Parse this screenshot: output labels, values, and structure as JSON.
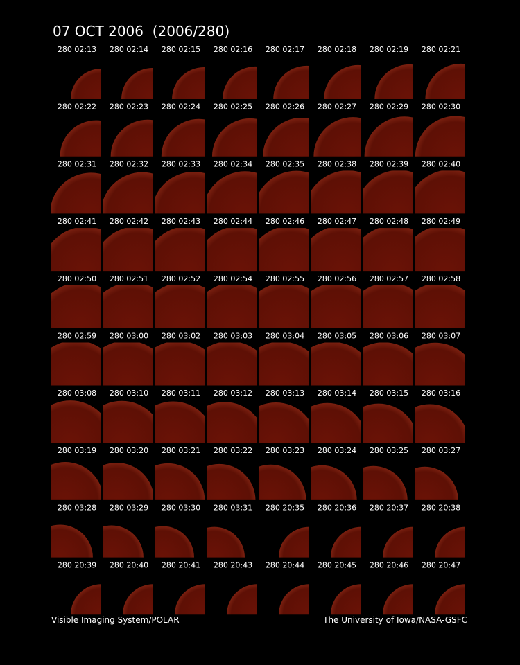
{
  "header": {
    "title": "07 OCT 2006  (2006/280)"
  },
  "frames": [
    "280 02:13",
    "280 02:14",
    "280 02:15",
    "280 02:16",
    "280 02:17",
    "280 02:18",
    "280 02:19",
    "280 02:21",
    "280 02:22",
    "280 02:23",
    "280 02:24",
    "280 02:25",
    "280 02:26",
    "280 02:27",
    "280 02:29",
    "280 02:30",
    "280 02:31",
    "280 02:32",
    "280 02:33",
    "280 02:34",
    "280 02:35",
    "280 02:38",
    "280 02:39",
    "280 02:40",
    "280 02:41",
    "280 02:42",
    "280 02:43",
    "280 02:44",
    "280 02:46",
    "280 02:47",
    "280 02:48",
    "280 02:49",
    "280 02:50",
    "280 02:51",
    "280 02:52",
    "280 02:54",
    "280 02:55",
    "280 02:56",
    "280 02:57",
    "280 02:58",
    "280 02:59",
    "280 03:00",
    "280 03:02",
    "280 03:03",
    "280 03:04",
    "280 03:05",
    "280 03:06",
    "280 03:07",
    "280 03:08",
    "280 03:10",
    "280 03:11",
    "280 03:12",
    "280 03:13",
    "280 03:14",
    "280 03:15",
    "280 03:16",
    "280 03:19",
    "280 03:20",
    "280 03:21",
    "280 03:22",
    "280 03:23",
    "280 03:24",
    "280 03:25",
    "280 03:27",
    "280 03:28",
    "280 03:29",
    "280 03:30",
    "280 03:31",
    "280 20:35",
    "280 20:36",
    "280 20:37",
    "280 20:38",
    "280 20:39",
    "280 20:40",
    "280 20:41",
    "280 20:43",
    "280 20:44",
    "280 20:45",
    "280 20:46",
    "280 20:47"
  ],
  "footer": {
    "left": "Visible Imaging System/POLAR",
    "right": "The University of Iowa/NASA-GSFC"
  }
}
